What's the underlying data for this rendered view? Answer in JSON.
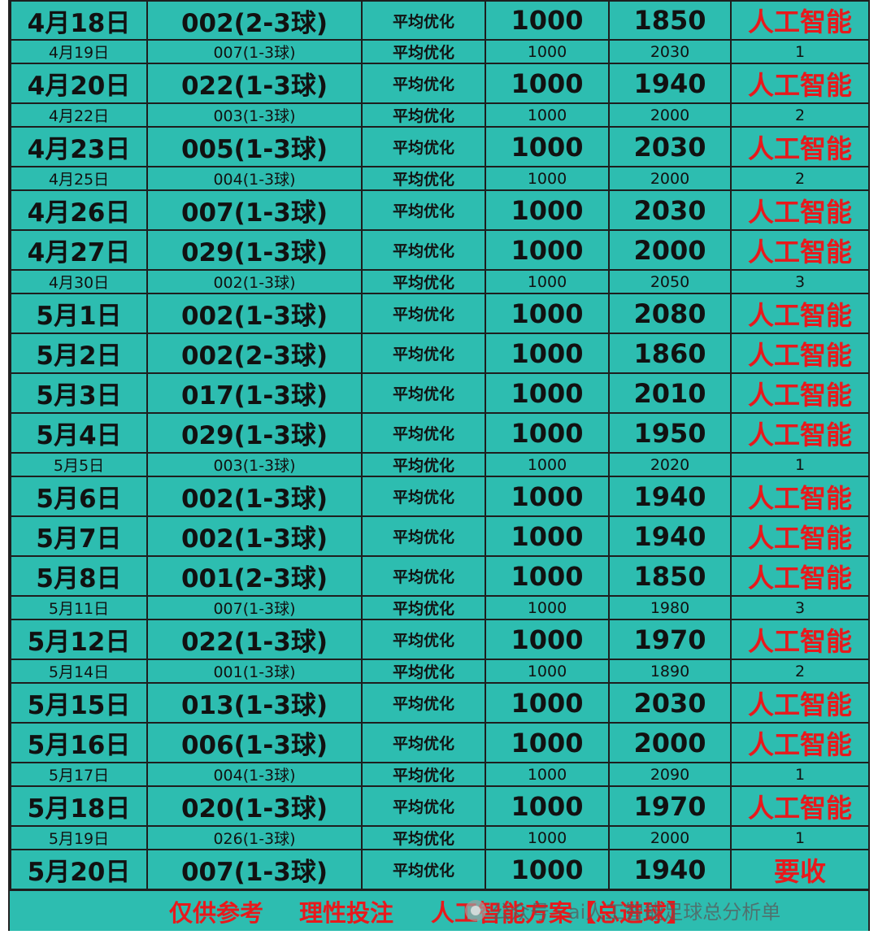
{
  "rows": [
    {
      "size": "big",
      "date": "4月18日",
      "match": "002(2-3球)",
      "method": "平均优化",
      "stake": "1000",
      "ret": "1850",
      "result": "人工智能"
    },
    {
      "size": "small",
      "date": "4月19日",
      "match": "007(1-3球)",
      "method": "平均优化",
      "stake": "1000",
      "ret": "2030",
      "result": "1"
    },
    {
      "size": "big",
      "date": "4月20日",
      "match": "022(1-3球)",
      "method": "平均优化",
      "stake": "1000",
      "ret": "1940",
      "result": "人工智能"
    },
    {
      "size": "small",
      "date": "4月22日",
      "match": "003(1-3球)",
      "method": "平均优化",
      "stake": "1000",
      "ret": "2000",
      "result": "2"
    },
    {
      "size": "big",
      "date": "4月23日",
      "match": "005(1-3球)",
      "method": "平均优化",
      "stake": "1000",
      "ret": "2030",
      "result": "人工智能"
    },
    {
      "size": "small",
      "date": "4月25日",
      "match": "004(1-3球)",
      "method": "平均优化",
      "stake": "1000",
      "ret": "2000",
      "result": "2"
    },
    {
      "size": "big",
      "date": "4月26日",
      "match": "007(1-3球)",
      "method": "平均优化",
      "stake": "1000",
      "ret": "2030",
      "result": "人工智能"
    },
    {
      "size": "big",
      "date": "4月27日",
      "match": "029(1-3球)",
      "method": "平均优化",
      "stake": "1000",
      "ret": "2000",
      "result": "人工智能"
    },
    {
      "size": "small",
      "date": "4月30日",
      "match": "002(1-3球)",
      "method": "平均优化",
      "stake": "1000",
      "ret": "2050",
      "result": "3"
    },
    {
      "size": "big",
      "date": "5月1日",
      "match": "002(1-3球)",
      "method": "平均优化",
      "stake": "1000",
      "ret": "2080",
      "result": "人工智能"
    },
    {
      "size": "big",
      "date": "5月2日",
      "match": "002(2-3球)",
      "method": "平均优化",
      "stake": "1000",
      "ret": "1860",
      "result": "人工智能"
    },
    {
      "size": "big",
      "date": "5月3日",
      "match": "017(1-3球)",
      "method": "平均优化",
      "stake": "1000",
      "ret": "2010",
      "result": "人工智能"
    },
    {
      "size": "big",
      "date": "5月4日",
      "match": "029(1-3球)",
      "method": "平均优化",
      "stake": "1000",
      "ret": "1950",
      "result": "人工智能"
    },
    {
      "size": "small",
      "date": "5月5日",
      "match": "003(1-3球)",
      "method": "平均优化",
      "stake": "1000",
      "ret": "2020",
      "result": "1"
    },
    {
      "size": "big",
      "date": "5月6日",
      "match": "002(1-3球)",
      "method": "平均优化",
      "stake": "1000",
      "ret": "1940",
      "result": "人工智能"
    },
    {
      "size": "big",
      "date": "5月7日",
      "match": "002(1-3球)",
      "method": "平均优化",
      "stake": "1000",
      "ret": "1940",
      "result": "人工智能"
    },
    {
      "size": "big",
      "date": "5月8日",
      "match": "001(2-3球)",
      "method": "平均优化",
      "stake": "1000",
      "ret": "1850",
      "result": "人工智能"
    },
    {
      "size": "small",
      "date": "5月11日",
      "match": "007(1-3球)",
      "method": "平均优化",
      "stake": "1000",
      "ret": "1980",
      "result": "3"
    },
    {
      "size": "big",
      "date": "5月12日",
      "match": "022(1-3球)",
      "method": "平均优化",
      "stake": "1000",
      "ret": "1970",
      "result": "人工智能"
    },
    {
      "size": "small",
      "date": "5月14日",
      "match": "001(1-3球)",
      "method": "平均优化",
      "stake": "1000",
      "ret": "1890",
      "result": "2"
    },
    {
      "size": "big",
      "date": "5月15日",
      "match": "013(1-3球)",
      "method": "平均优化",
      "stake": "1000",
      "ret": "2030",
      "result": "人工智能"
    },
    {
      "size": "big",
      "date": "5月16日",
      "match": "006(1-3球)",
      "method": "平均优化",
      "stake": "1000",
      "ret": "2000",
      "result": "人工智能"
    },
    {
      "size": "small",
      "date": "5月17日",
      "match": "004(1-3球)",
      "method": "平均优化",
      "stake": "1000",
      "ret": "2090",
      "result": "1"
    },
    {
      "size": "big",
      "date": "5月18日",
      "match": "020(1-3球)",
      "method": "平均优化",
      "stake": "1000",
      "ret": "1970",
      "result": "人工智能"
    },
    {
      "size": "small",
      "date": "5月19日",
      "match": "026(1-3球)",
      "method": "平均优化",
      "stake": "1000",
      "ret": "2000",
      "result": "1"
    },
    {
      "size": "big",
      "date": "5月20日",
      "match": "007(1-3球)",
      "method": "平均优化",
      "stake": "1000",
      "ret": "1940",
      "result": "要收"
    }
  ],
  "footer": {
    "slogan_1": "仅供参考",
    "slogan_2": "理性投注",
    "slogan_3": "人工智能方案【总进球】",
    "watermark": "公众号 · ai人工智能足球总分析单"
  },
  "colors": {
    "background": "#2dbdb0",
    "result_red": "#e8191c",
    "grid": "#1e1e1e"
  }
}
